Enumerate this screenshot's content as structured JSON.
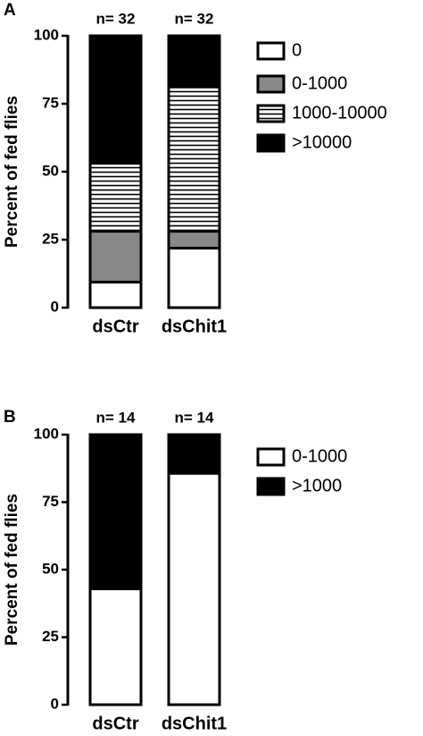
{
  "chart_data": [
    {
      "type": "stacked_bar",
      "panel": "A",
      "y_label": "Percent of fed flies",
      "categories": [
        "dsCtr",
        "dsChit1"
      ],
      "annotations": [
        "n= 32",
        "n= 32"
      ],
      "series": [
        {
          "name": "0",
          "color": "#ffffff",
          "values": [
            9.4,
            21.9
          ]
        },
        {
          "name": "0-1000",
          "color": "#888888",
          "values": [
            18.7,
            6.2
          ]
        },
        {
          "name": "1000-10000",
          "color": "#ffffff",
          "hatch": "horizontal",
          "values": [
            25,
            53.1
          ]
        },
        {
          "name": ">10000",
          "color": "#000000",
          "values": [
            46.9,
            18.8
          ]
        }
      ],
      "ylim": [
        0,
        100
      ],
      "yticks": [
        0,
        25,
        50,
        75,
        100
      ]
    },
    {
      "type": "stacked_bar",
      "panel": "B",
      "y_label": "Percent of fed flies",
      "categories": [
        "dsCtr",
        "dsChit1"
      ],
      "annotations": [
        "n= 14",
        "n= 14"
      ],
      "series": [
        {
          "name": "0-1000",
          "color": "#ffffff",
          "values": [
            42.9,
            85.7
          ]
        },
        {
          "name": ">1000",
          "color": "#000000",
          "values": [
            57.1,
            14.3
          ]
        }
      ],
      "ylim": [
        0,
        100
      ],
      "yticks": [
        0,
        25,
        50,
        75,
        100
      ]
    }
  ]
}
